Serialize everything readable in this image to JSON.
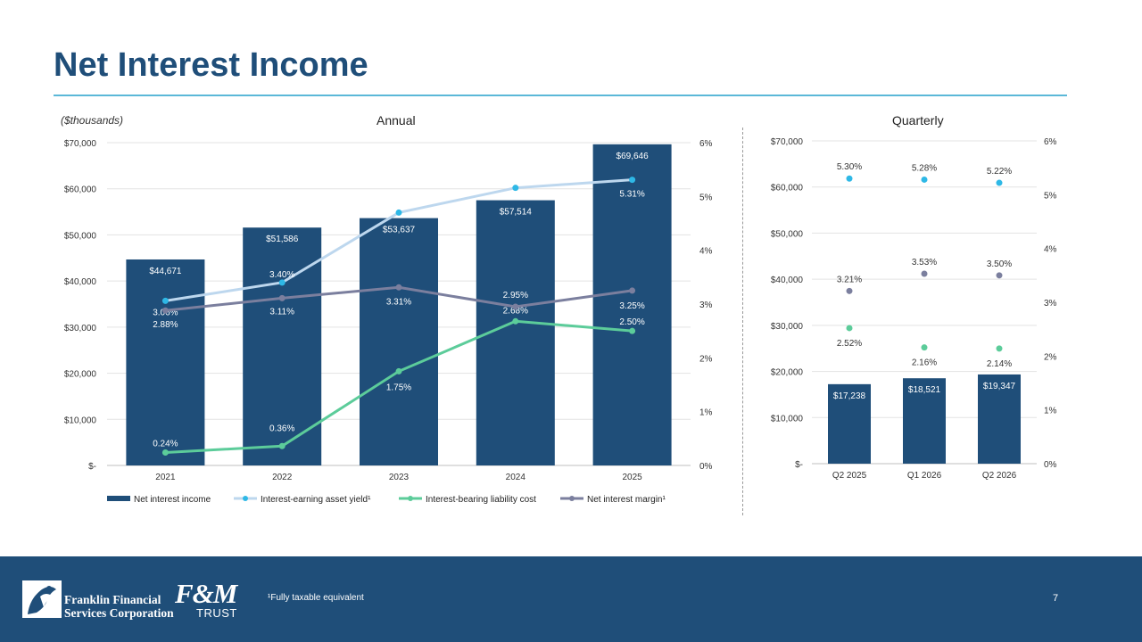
{
  "page": {
    "title": "Net Interest Income",
    "units": "($thousands)",
    "footnote": "¹Fully taxable equivalent",
    "page_number": "7"
  },
  "logos": {
    "franklin": "Franklin Financial\nServices Corporation",
    "fm_main": "F&M",
    "fm_sub": "TRUST"
  },
  "colors": {
    "bar": "#1f4e79",
    "asset_yield": "#bdd7ee",
    "asset_yield_marker": "#2eb8e6",
    "liability_cost": "#5ccc9a",
    "nim": "#7b7f9e",
    "footer": "#1f4e79",
    "accent_rule": "#5bb8d8"
  },
  "chart_data": [
    {
      "type": "bar",
      "title": "Annual",
      "categories": [
        "2021",
        "2022",
        "2023",
        "2024",
        "2025"
      ],
      "series": [
        {
          "name": "Net interest income",
          "type": "bar",
          "axis": "left",
          "values": [
            44671,
            51586,
            53637,
            57514,
            69646
          ],
          "labels": [
            "$44,671",
            "$51,586",
            "$53,637",
            "$57,514",
            "$69,646"
          ]
        },
        {
          "name": "Interest-earning asset yield¹",
          "type": "line",
          "axis": "right",
          "values": [
            3.06,
            3.4,
            4.7,
            5.16,
            5.31
          ],
          "labels": [
            "3.06%",
            "3.40%",
            "4.70%",
            "5.16%",
            "5.31%"
          ]
        },
        {
          "name": "Interest-bearing liability cost",
          "type": "line",
          "axis": "right",
          "values": [
            0.24,
            0.36,
            1.75,
            2.68,
            2.5
          ],
          "labels": [
            "0.24%",
            "0.36%",
            "1.75%",
            "2.68%",
            "2.50%"
          ]
        },
        {
          "name": "Net interest margin¹",
          "type": "line",
          "axis": "right",
          "values": [
            2.88,
            3.11,
            3.31,
            2.95,
            3.25
          ],
          "labels": [
            "2.88%",
            "3.11%",
            "3.31%",
            "2.95%",
            "3.25%"
          ]
        }
      ],
      "ylim": [
        0,
        70000
      ],
      "y_ticks": [
        "$-",
        "$10,000",
        "$20,000",
        "$30,000",
        "$40,000",
        "$50,000",
        "$60,000",
        "$70,000"
      ],
      "y2lim": [
        0,
        6
      ],
      "y2_ticks": [
        "0%",
        "1%",
        "2%",
        "3%",
        "4%",
        "5%",
        "6%"
      ],
      "grid": true,
      "legend": "bottom"
    },
    {
      "type": "bar",
      "title": "Quarterly",
      "categories": [
        "Q2 2025",
        "Q1 2026",
        "Q2 2026"
      ],
      "series": [
        {
          "name": "Net interest income",
          "type": "bar",
          "axis": "left",
          "values": [
            17238,
            18521,
            19347
          ],
          "labels": [
            "$17,238",
            "$18,521",
            "$19,347"
          ]
        },
        {
          "name": "Interest-earning asset yield¹",
          "type": "scatter",
          "axis": "right",
          "values": [
            5.3,
            5.28,
            5.22
          ],
          "labels": [
            "5.30%",
            "5.28%",
            "5.22%"
          ]
        },
        {
          "name": "Interest-bearing liability cost",
          "type": "scatter",
          "axis": "right",
          "values": [
            2.52,
            2.16,
            2.14
          ],
          "labels": [
            "2.52%",
            "2.16%",
            "2.14%"
          ]
        },
        {
          "name": "Net interest margin¹",
          "type": "scatter",
          "axis": "right",
          "values": [
            3.21,
            3.53,
            3.5
          ],
          "labels": [
            "3.21%",
            "3.53%",
            "3.50%"
          ]
        }
      ],
      "ylim": [
        0,
        70000
      ],
      "y_ticks": [
        "$-",
        "$10,000",
        "$20,000",
        "$30,000",
        "$40,000",
        "$50,000",
        "$60,000",
        "$70,000"
      ],
      "y2lim": [
        0,
        6
      ],
      "y2_ticks": [
        "0%",
        "1%",
        "2%",
        "3%",
        "4%",
        "5%",
        "6%"
      ],
      "grid": true,
      "legend": "none"
    }
  ]
}
